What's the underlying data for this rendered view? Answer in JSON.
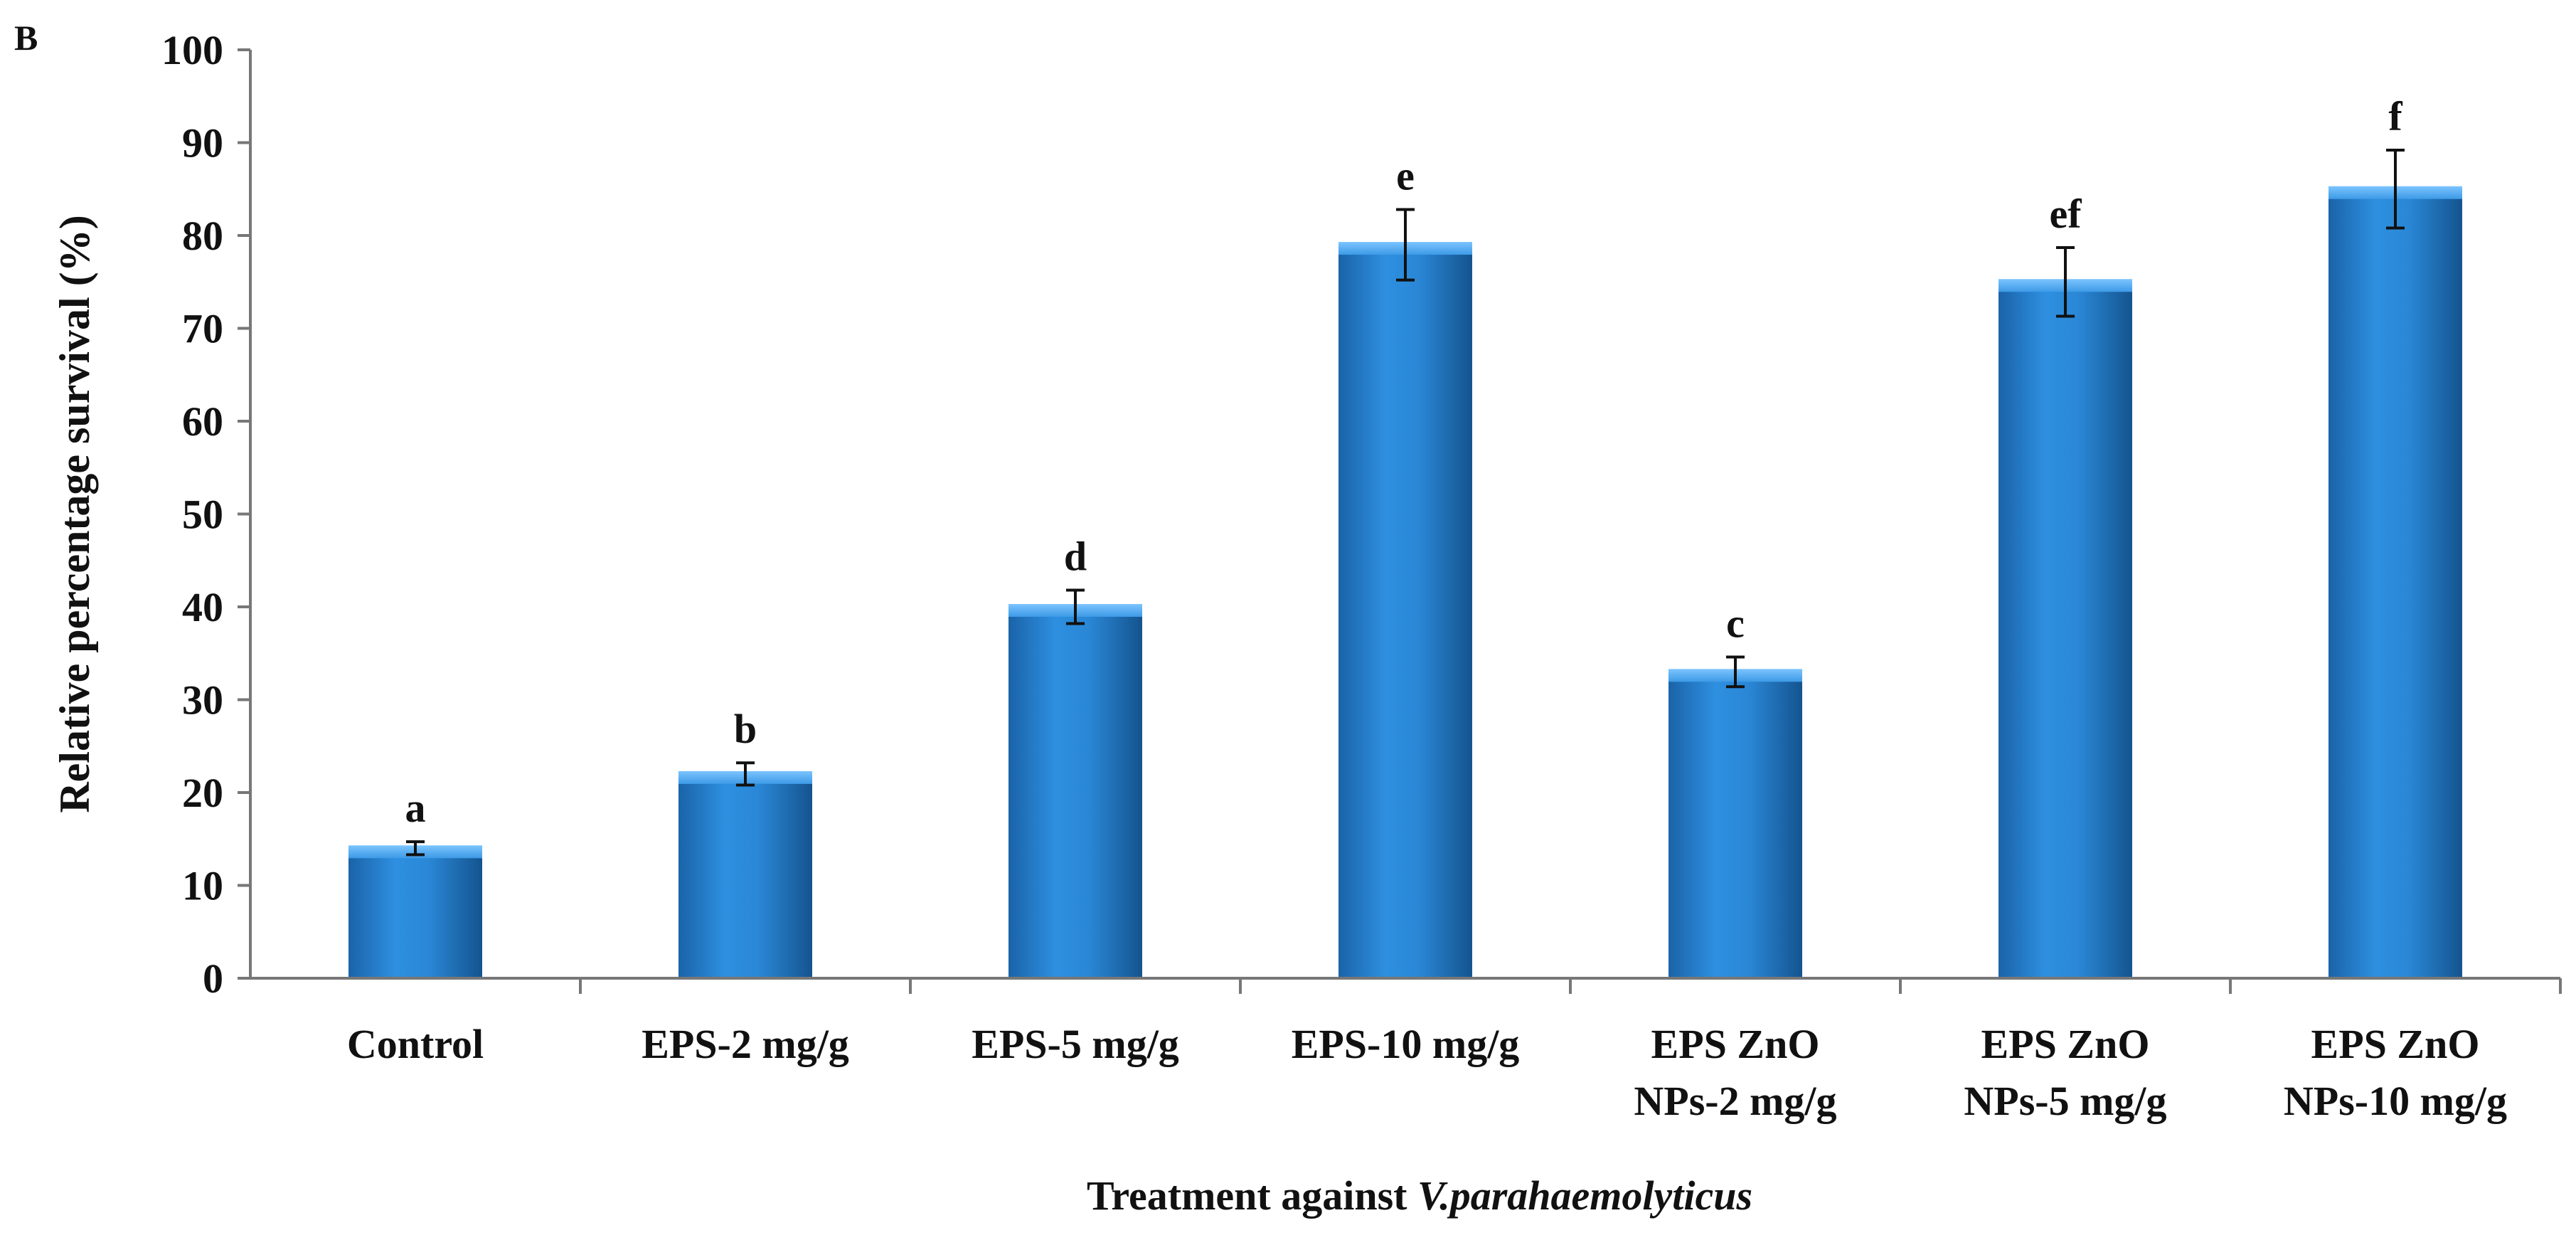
{
  "panel_label": "B",
  "chart_data": {
    "type": "bar",
    "title": "",
    "panel_label": "B",
    "categories": [
      [
        "Control"
      ],
      [
        "EPS-2 mg/g"
      ],
      [
        "EPS-5 mg/g"
      ],
      [
        "EPS-10 mg/g"
      ],
      [
        "EPS ZnO",
        "NPs-2 mg/g"
      ],
      [
        "EPS ZnO",
        "NPs-5 mg/g"
      ],
      [
        "EPS ZnO",
        "NPs-10 mg/g"
      ]
    ],
    "values": [
      14,
      22,
      40,
      79,
      33,
      75,
      85
    ],
    "errors": [
      0.7,
      1.2,
      1.8,
      3.8,
      1.6,
      3.7,
      4.2
    ],
    "significance_letters": [
      "a",
      "b",
      "d",
      "e",
      "c",
      "ef",
      "f"
    ],
    "ylabel": "Relative percentage survival  (%)",
    "xlabel_prefix": "Treatment against ",
    "xlabel_italic": "V.parahaemolyticus",
    "ylim": [
      0,
      100
    ],
    "yticks": [
      0,
      10,
      20,
      30,
      40,
      50,
      60,
      70,
      80,
      90,
      100
    ],
    "grid": false,
    "bar_color": "#1f7fd0"
  }
}
